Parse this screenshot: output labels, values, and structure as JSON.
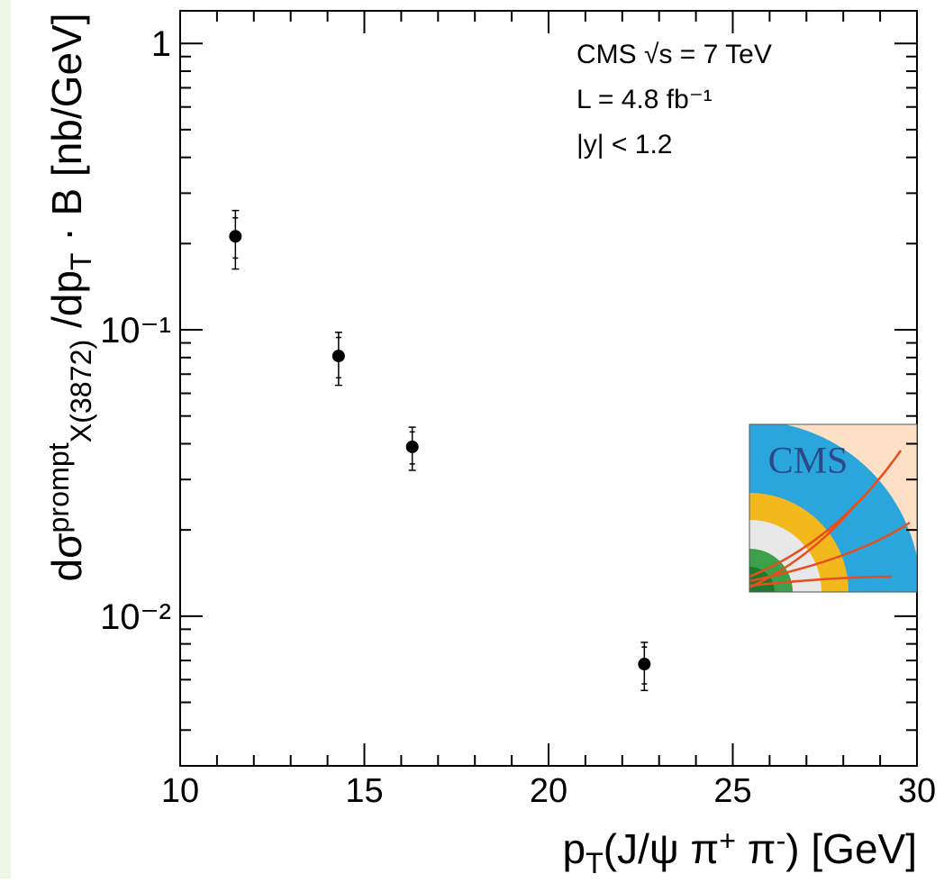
{
  "chart_data": {
    "type": "scatter",
    "xlabel": [
      "p",
      "T",
      "(J/ψ π",
      "+",
      " π",
      "-",
      ") [GeV]"
    ],
    "ylabel": [
      "dσ",
      "prompt",
      "X(3872)",
      " /dp",
      "T",
      " · B [nb/GeV]"
    ],
    "annotations": [
      "CMS  √s = 7 TeV",
      "L = 4.8 fb⁻¹",
      "|y| < 1.2"
    ],
    "logo_text": "CMS",
    "xlim": [
      10,
      30
    ],
    "xticks": [
      10,
      15,
      20,
      25,
      30
    ],
    "xminor_ticks": [
      11,
      12,
      13,
      14,
      16,
      17,
      18,
      19,
      21,
      22,
      23,
      24,
      26,
      27,
      28,
      29
    ],
    "ylim": [
      0.003,
      1.3
    ],
    "ylog": true,
    "yticks": [
      {
        "value": 0.01,
        "label": "10⁻²"
      },
      {
        "value": 0.1,
        "label": "10⁻¹"
      },
      1
    ],
    "yminor_ticks": [
      0.003,
      0.004,
      0.005,
      0.006,
      0.007,
      0.008,
      0.009,
      0.02,
      0.03,
      0.04,
      0.05,
      0.06,
      0.07,
      0.08,
      0.09,
      0.2,
      0.3,
      0.4,
      0.5,
      0.6,
      0.7,
      0.8,
      0.9
    ],
    "series": [
      {
        "color": "#000000",
        "x": [
          11.5,
          14.3,
          16.3,
          22.6
        ],
        "values": [
          0.212,
          0.081,
          0.039,
          0.0068
        ],
        "err_stat": [
          0.034,
          0.013,
          0.005,
          0.001
        ],
        "err_total": [
          0.049,
          0.017,
          0.0067,
          0.0013
        ]
      }
    ]
  }
}
